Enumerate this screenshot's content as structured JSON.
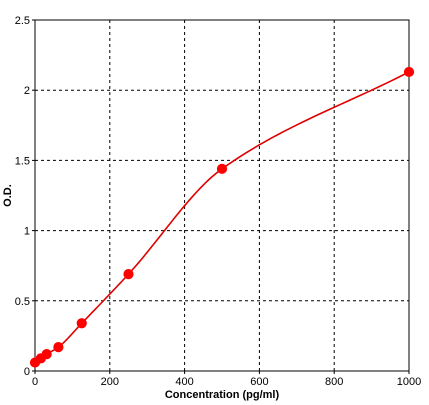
{
  "chart_data": {
    "type": "scatter",
    "title": "",
    "xlabel": "Concentration (pg/ml)",
    "ylabel": "O.D.",
    "xlim": [
      0,
      1000
    ],
    "ylim": [
      0,
      2.5
    ],
    "x_ticks": [
      0,
      200,
      400,
      600,
      800,
      1000
    ],
    "x_tick_labels": [
      "0",
      "200",
      "400",
      "600",
      "800",
      "1000"
    ],
    "y_ticks": [
      0,
      0.5,
      1,
      1.5,
      2,
      2.5
    ],
    "y_tick_labels": [
      "0",
      "0.5",
      "1",
      "1.5",
      "2",
      "2.5"
    ],
    "grid": true,
    "grid_style": "dashed",
    "legend": "none",
    "points": {
      "x": [
        0,
        15.6,
        31.2,
        62.5,
        125,
        250,
        500,
        1000
      ],
      "y": [
        0.06,
        0.09,
        0.12,
        0.17,
        0.34,
        0.69,
        1.44,
        2.13
      ]
    },
    "fitted_curve": true,
    "colors": {
      "marker": "#ff0000",
      "curve": "#e00000",
      "grid": "#000000"
    }
  }
}
